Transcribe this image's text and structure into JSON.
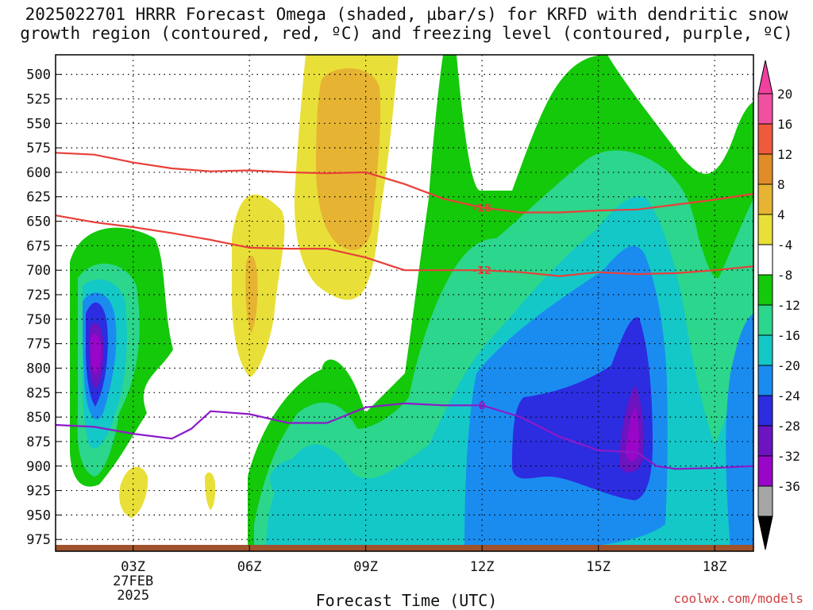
{
  "title_line1": "2025022701 HRRR Forecast Omega (shaded, µbar/s) for KRFD with dendritic snow",
  "title_line2": "growth region (contoured, red, ºC) and freezing level (contoured, purple, ºC)",
  "credit": "coolwx.com/models",
  "chart_data": {
    "type": "heatmap",
    "title": "2025022701 HRRR Forecast Omega (shaded, µbar/s) for KRFD with dendritic snow growth region (contoured, red, ºC) and freezing level (contoured, purple, ºC)",
    "xlabel": "Forecast Time (UTC)",
    "ylabel": "",
    "x_range_hours": [
      1,
      19
    ],
    "x_ticks": [
      {
        "hour": 3,
        "label": "03Z",
        "sub1": "27FEB",
        "sub2": "2025"
      },
      {
        "hour": 6,
        "label": "06Z"
      },
      {
        "hour": 9,
        "label": "09Z"
      },
      {
        "hour": 12,
        "label": "12Z"
      },
      {
        "hour": 15,
        "label": "15Z"
      },
      {
        "hour": 18,
        "label": "18Z"
      }
    ],
    "y_range_hpa": [
      987,
      480
    ],
    "y_ticks": [
      500,
      525,
      550,
      575,
      600,
      625,
      650,
      675,
      700,
      725,
      750,
      775,
      800,
      825,
      850,
      875,
      900,
      925,
      950,
      975
    ],
    "grid": true,
    "colorbar": {
      "levels": [
        -36,
        -32,
        -28,
        -24,
        -20,
        -16,
        -12,
        -8,
        -4,
        4,
        8,
        12,
        16,
        20
      ],
      "colors": [
        "#a6a6a6",
        "#9a06c8",
        "#6b14c0",
        "#2c2ce0",
        "#1a8cf0",
        "#14c8c8",
        "#2cd68c",
        "#14c80a",
        "#ffffff",
        "#e8e038",
        "#e6b432",
        "#e08c28",
        "#f05a3c",
        "#f050a0"
      ],
      "tick_labels": [
        "20",
        "16",
        "12",
        "8",
        "4",
        "-4",
        "-8",
        "-12",
        "-16",
        "-20",
        "-24",
        "-28",
        "-32",
        "-36"
      ]
    },
    "omega_field": [
      {
        "band": "-4 to -8",
        "regions": [
          "left column 640-912 hPa around 02Z",
          "03Z-06Z lower layers",
          "right half 10Z-19Z"
        ]
      },
      {
        "band": "-28 to -32",
        "regions": [
          "02Z near 725-750 hPa",
          "16Z near 850 hPa"
        ]
      },
      {
        "band": "8 to 12",
        "regions": [
          "08Z around 525-625 hPa"
        ]
      }
    ],
    "series": [
      {
        "name": "-18",
        "color": "#e8403a",
        "x": [
          1,
          2,
          3,
          4,
          5,
          6,
          7,
          8,
          9,
          10,
          11,
          12,
          13,
          14,
          15,
          16,
          17,
          18,
          19
        ],
        "y": [
          580,
          582,
          590,
          596,
          599,
          598,
          600,
          601,
          600,
          612,
          627,
          636,
          641,
          641,
          639,
          638,
          633,
          628,
          622
        ]
      },
      {
        "name": "-12",
        "color": "#e8403a",
        "x": [
          1,
          2,
          3,
          4,
          5,
          6,
          7,
          8,
          9,
          10,
          11,
          12,
          13,
          14,
          15,
          16,
          17,
          18,
          19
        ],
        "y": [
          644,
          651,
          656,
          662,
          669,
          677,
          678,
          678,
          687,
          700,
          700,
          700,
          702,
          706,
          702,
          704,
          703,
          700,
          696
        ]
      },
      {
        "name": "0",
        "color": "#8c1ac8",
        "x": [
          1,
          2,
          3,
          4,
          4.5,
          5,
          6,
          7,
          8,
          9,
          10,
          11,
          12,
          13,
          14,
          15,
          16,
          16.5,
          17,
          18,
          19
        ],
        "y": [
          858,
          860,
          867,
          872,
          862,
          844,
          847,
          856,
          856,
          840,
          836,
          838,
          838,
          850,
          870,
          884,
          886,
          900,
          903,
          902,
          900
        ]
      }
    ]
  }
}
